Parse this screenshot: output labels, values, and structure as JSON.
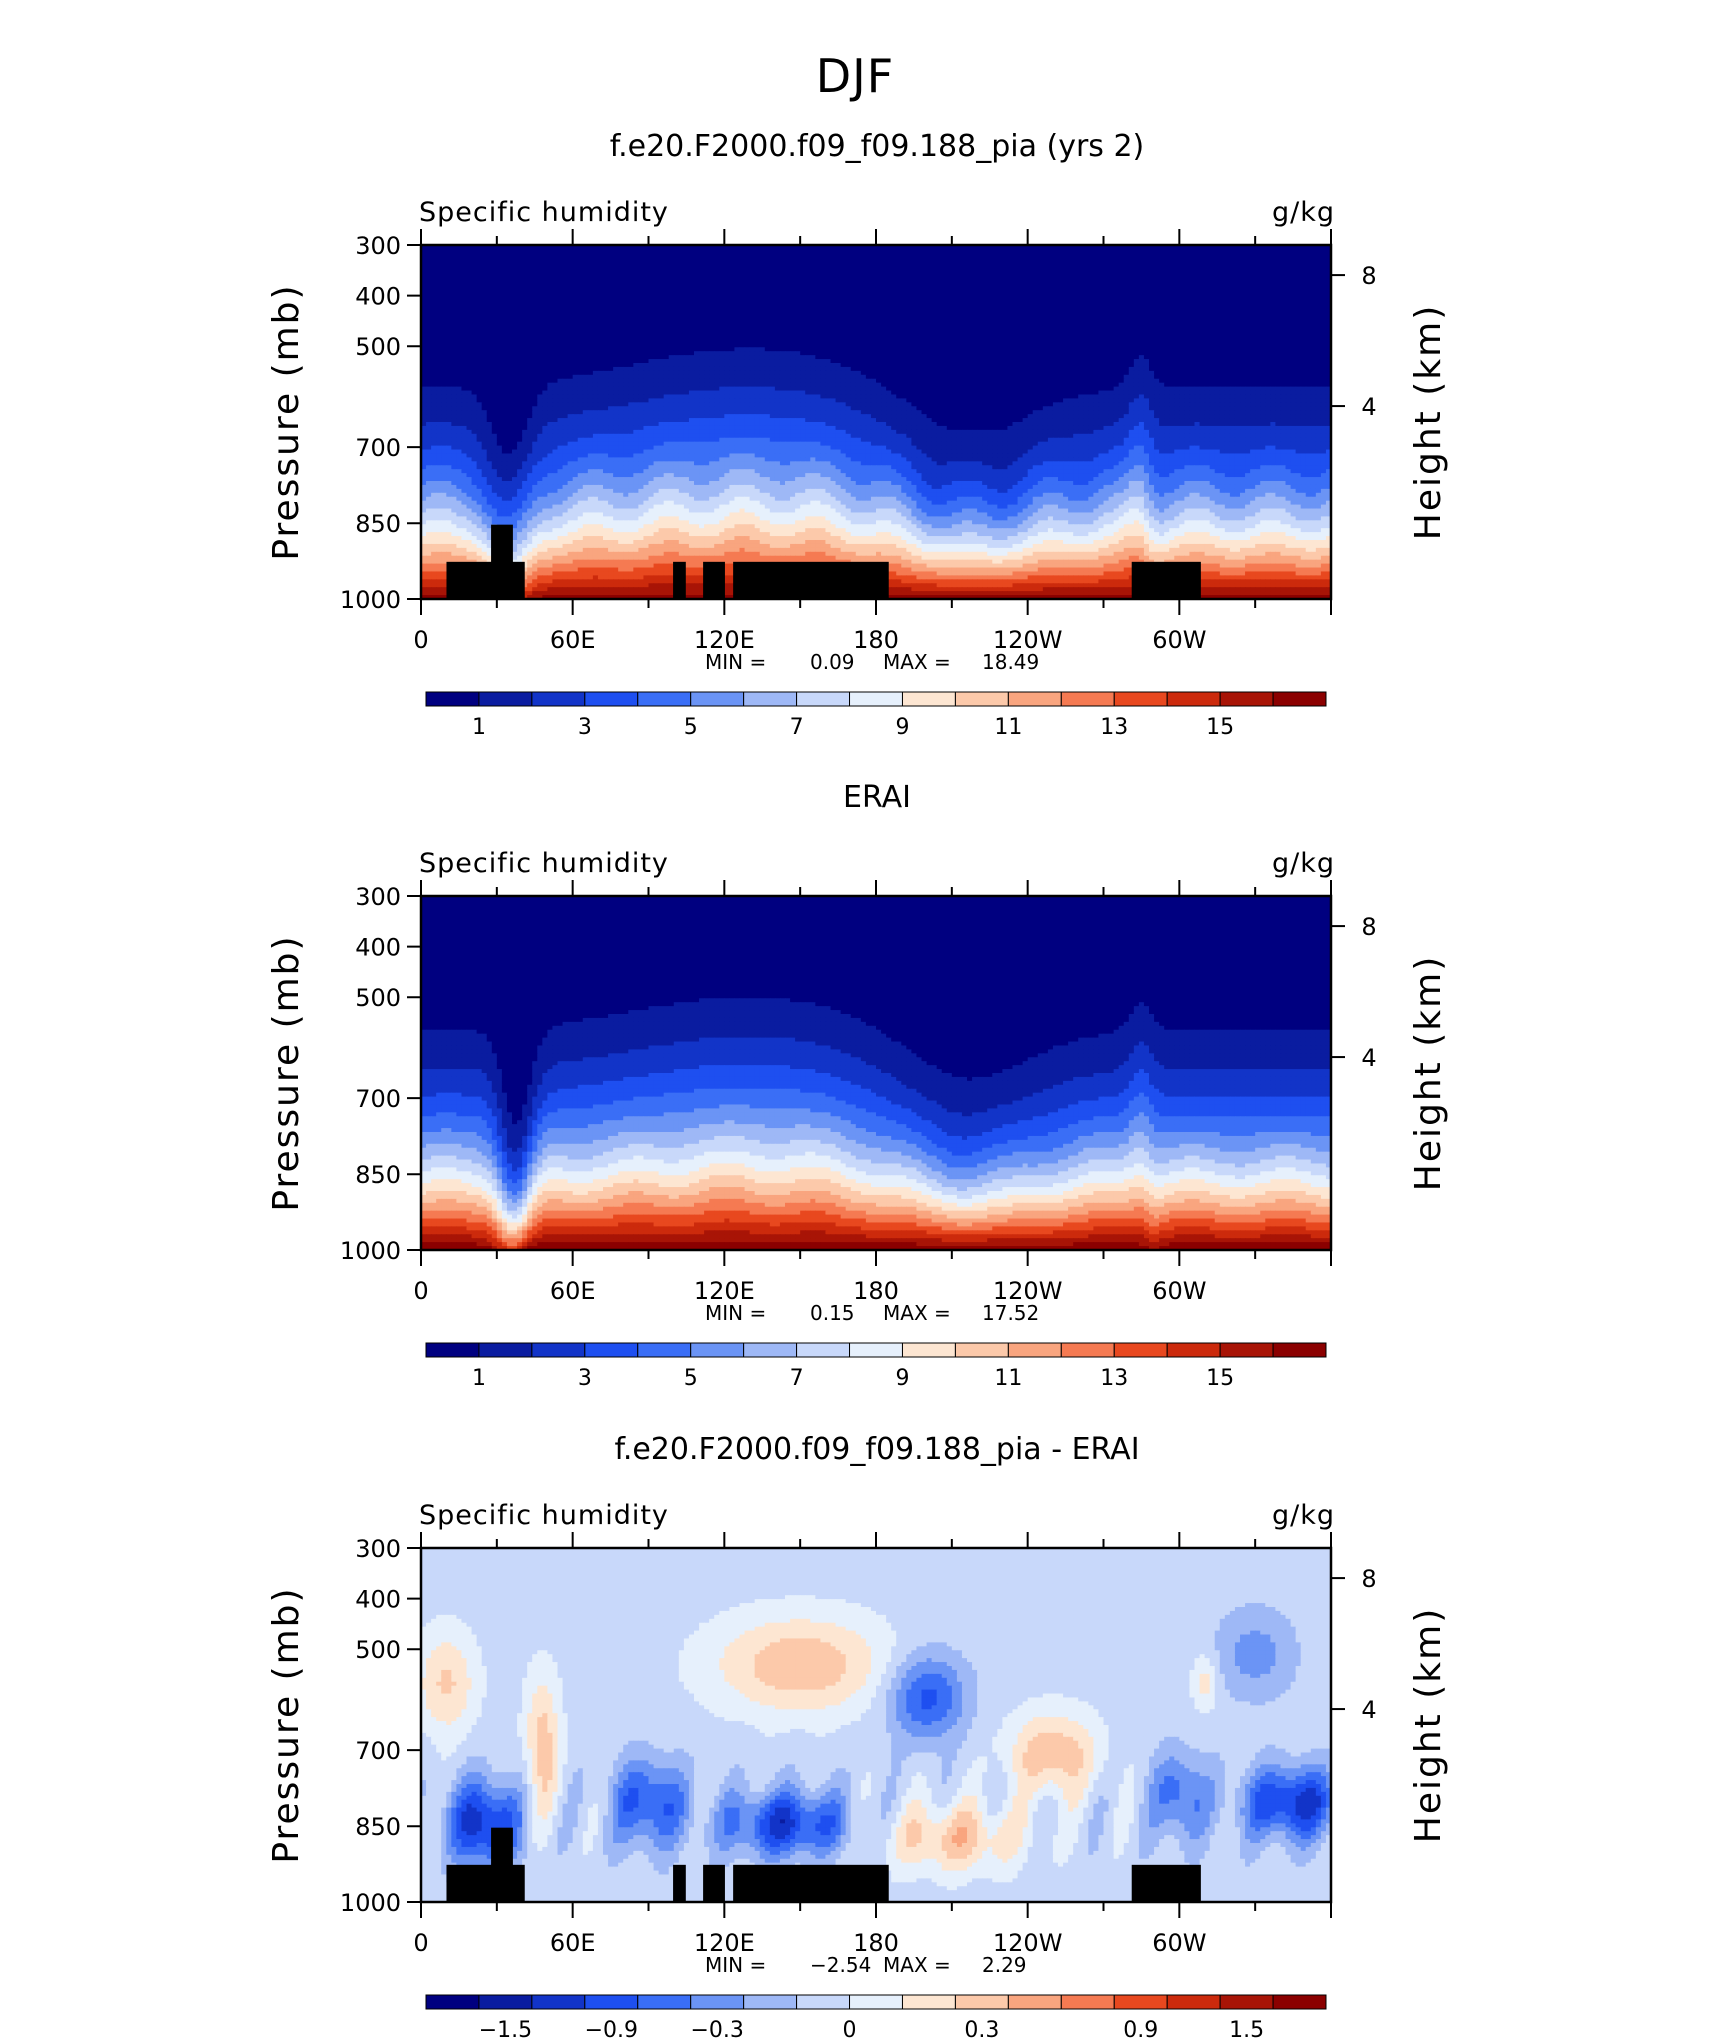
{
  "figure": {
    "title": "DJF"
  },
  "colors": {
    "sequential": [
      "#000080",
      "#0a1ca0",
      "#1234c8",
      "#1e4ff0",
      "#3a6ef6",
      "#6b94f5",
      "#9eb8f6",
      "#c8d8fa",
      "#e6f0fc",
      "#fde6d2",
      "#fcc9aa",
      "#f9a57f",
      "#f57a52",
      "#e8481f",
      "#cc2a0c",
      "#a81406",
      "#8b0000"
    ],
    "diverging": [
      "#000080",
      "#0a1ca0",
      "#1234c8",
      "#1e4ff0",
      "#3a6ef6",
      "#6b94f5",
      "#9eb8f6",
      "#c8d8fa",
      "#e6f0fc",
      "#fde6d2",
      "#fcc9aa",
      "#f9a57f",
      "#f57a52",
      "#e8481f",
      "#cc2a0c",
      "#a81406",
      "#8b0000"
    ],
    "topography": "#000000"
  },
  "chart_data": [
    {
      "type": "heatmap",
      "title": "f.e20.F2000.f09_f09.188_pia (yrs 2)",
      "left_label": "Specific humidity",
      "right_label": "g/kg",
      "ylabel": "Pressure (mb)",
      "ylabel_right": "Height (km)",
      "y_ticks": [
        "300",
        "400",
        "500",
        "700",
        "850",
        "1000"
      ],
      "y_right_ticks": [
        "8",
        "4"
      ],
      "x_ticks": [
        "0",
        "60E",
        "120E",
        "180",
        "120W",
        "60W"
      ],
      "min_label": "MIN =",
      "min": "0.09",
      "max_label": "MAX =",
      "max": "18.49",
      "colorbar_labels": [
        "1",
        "3",
        "5",
        "7",
        "9",
        "11",
        "13",
        "15"
      ],
      "colorbar_levels": [
        0,
        1,
        2,
        3,
        4,
        5,
        6,
        7,
        8,
        9,
        10,
        11,
        12,
        13,
        14,
        15,
        16
      ],
      "field": "model",
      "topography_blocks": true
    },
    {
      "type": "heatmap",
      "title": "ERAI",
      "left_label": "Specific humidity",
      "right_label": "g/kg",
      "ylabel": "Pressure (mb)",
      "ylabel_right": "Height (km)",
      "y_ticks": [
        "300",
        "400",
        "500",
        "700",
        "850",
        "1000"
      ],
      "y_right_ticks": [
        "8",
        "4"
      ],
      "x_ticks": [
        "0",
        "60E",
        "120E",
        "180",
        "120W",
        "60W"
      ],
      "min_label": "MIN =",
      "min": "0.15",
      "max_label": "MAX =",
      "max": "17.52",
      "colorbar_labels": [
        "1",
        "3",
        "5",
        "7",
        "9",
        "11",
        "13",
        "15"
      ],
      "colorbar_levels": [
        0,
        1,
        2,
        3,
        4,
        5,
        6,
        7,
        8,
        9,
        10,
        11,
        12,
        13,
        14,
        15,
        16
      ],
      "field": "obs",
      "topography_blocks": false
    },
    {
      "type": "heatmap",
      "title": "f.e20.F2000.f09_f09.188_pia - ERAI",
      "left_label": "Specific humidity",
      "right_label": "g/kg",
      "ylabel": "Pressure (mb)",
      "ylabel_right": "Height (km)",
      "y_ticks": [
        "300",
        "400",
        "500",
        "700",
        "850",
        "1000"
      ],
      "y_right_ticks": [
        "8",
        "4"
      ],
      "x_ticks": [
        "0",
        "60E",
        "120E",
        "180",
        "120W",
        "60W"
      ],
      "min_label": "MIN =",
      "min": "−2.54",
      "max_label": "MAX =",
      "max": "2.29",
      "colorbar_labels": [
        "−1.5",
        "−0.9",
        "−0.3",
        "0",
        "0.3",
        "0.9",
        "1.5"
      ],
      "colorbar_levels": [
        -2.4,
        -2.1,
        -1.8,
        -1.5,
        -1.2,
        -0.9,
        -0.6,
        -0.3,
        0,
        0.3,
        0.6,
        0.9,
        1.2,
        1.5,
        1.8,
        2.1,
        2.4
      ],
      "field": "diff",
      "topography_blocks": true
    }
  ]
}
